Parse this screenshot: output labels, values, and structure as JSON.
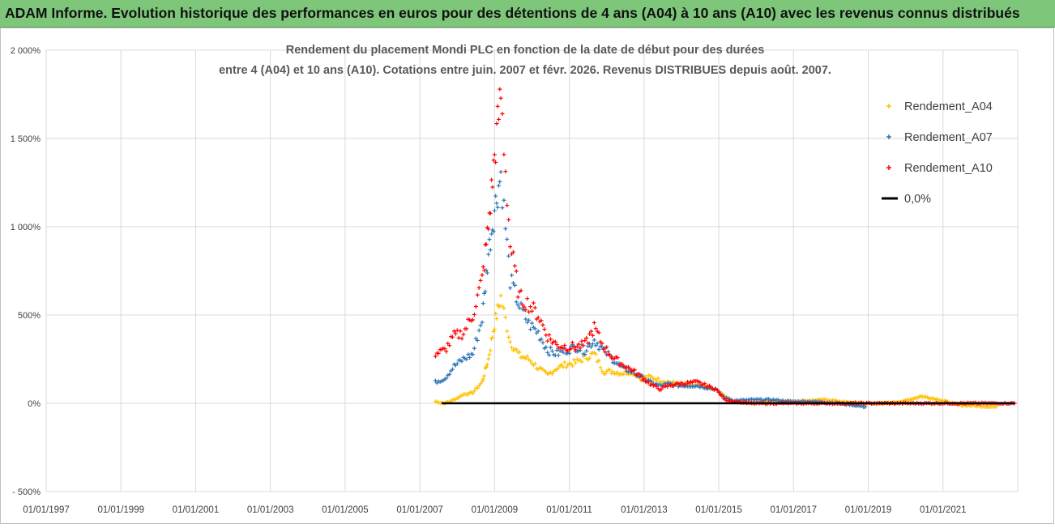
{
  "banner": {
    "title": "ADAM Informe. Evolution historique des performances en euros pour des détentions de 4 ans (A04) à 10 ans (A10) avec les revenus connus distribués"
  },
  "colors": {
    "banner_bg": "#7dc67a",
    "A04": "#ffc000",
    "A07": "#2e75b6",
    "A10": "#ff0000",
    "zero_line": "#000000",
    "grid": "#d9d9d9"
  },
  "chart_data": {
    "type": "scatter",
    "title_line1": "Rendement du placement Mondi PLC en fonction de la date de début pour des durées",
    "title_line2": "entre 4 (A04) et 10 ans (A10).  Cotations entre juin. 2007 et févr. 2026. Revenus DISTRIBUES depuis août. 2007.",
    "xlabel": "",
    "ylabel": "",
    "x_range": [
      "01/01/1997",
      "31/12/2022"
    ],
    "ylim": [
      -500,
      2000
    ],
    "y_ticks": [
      -500,
      0,
      500,
      1000,
      1500,
      2000
    ],
    "y_tick_labels": [
      "- 500%",
      "0%",
      "500%",
      "1 000%",
      "1 500%",
      "2 000%"
    ],
    "x_tick_labels": [
      "01/01/1997",
      "01/01/1999",
      "01/01/2001",
      "01/01/2003",
      "01/01/2005",
      "01/01/2007",
      "01/01/2009",
      "01/01/2011",
      "01/01/2013",
      "01/01/2015",
      "01/01/2017",
      "01/01/2019",
      "01/01/2021"
    ],
    "grid": true,
    "legend_position": "top-right",
    "series": [
      {
        "name": "Rendement_A04",
        "marker": "plus",
        "points": [
          [
            "2007-06",
            10
          ],
          [
            "2007-09",
            0
          ],
          [
            "2007-12",
            20
          ],
          [
            "2008-03",
            50
          ],
          [
            "2008-06",
            60
          ],
          [
            "2008-09",
            120
          ],
          [
            "2008-11",
            250
          ],
          [
            "2009-01",
            450
          ],
          [
            "2009-03",
            600
          ],
          [
            "2009-06",
            350
          ],
          [
            "2009-09",
            270
          ],
          [
            "2009-12",
            250
          ],
          [
            "2010-03",
            200
          ],
          [
            "2010-06",
            160
          ],
          [
            "2010-09",
            200
          ],
          [
            "2010-12",
            220
          ],
          [
            "2011-03",
            230
          ],
          [
            "2011-06",
            260
          ],
          [
            "2011-09",
            280
          ],
          [
            "2011-12",
            180
          ],
          [
            "2012-03",
            180
          ],
          [
            "2012-06",
            170
          ],
          [
            "2012-09",
            180
          ],
          [
            "2012-12",
            140
          ],
          [
            "2013-03",
            150
          ],
          [
            "2013-06",
            130
          ],
          [
            "2013-09",
            120
          ],
          [
            "2013-12",
            110
          ],
          [
            "2014-06",
            100
          ],
          [
            "2014-12",
            80
          ],
          [
            "2015-03",
            40
          ],
          [
            "2015-06",
            10
          ],
          [
            "2015-12",
            0
          ],
          [
            "2016-06",
            15
          ],
          [
            "2016-12",
            10
          ],
          [
            "2017-06",
            15
          ],
          [
            "2017-12",
            20
          ],
          [
            "2018-06",
            5
          ],
          [
            "2018-12",
            0
          ],
          [
            "2019-06",
            0
          ],
          [
            "2019-12",
            10
          ],
          [
            "2020-06",
            40
          ],
          [
            "2020-12",
            20
          ],
          [
            "2021-06",
            -10
          ],
          [
            "2022-06",
            -20
          ]
        ]
      },
      {
        "name": "Rendement_A07",
        "marker": "plus",
        "points": [
          [
            "2007-06",
            120
          ],
          [
            "2007-09",
            140
          ],
          [
            "2007-12",
            210
          ],
          [
            "2008-03",
            250
          ],
          [
            "2008-06",
            280
          ],
          [
            "2008-09",
            480
          ],
          [
            "2008-11",
            850
          ],
          [
            "2009-01",
            1100
          ],
          [
            "2009-03",
            1300
          ],
          [
            "2009-06",
            700
          ],
          [
            "2009-09",
            550
          ],
          [
            "2009-12",
            450
          ],
          [
            "2010-03",
            400
          ],
          [
            "2010-06",
            300
          ],
          [
            "2010-09",
            280
          ],
          [
            "2010-12",
            300
          ],
          [
            "2011-03",
            320
          ],
          [
            "2011-06",
            300
          ],
          [
            "2011-09",
            360
          ],
          [
            "2011-12",
            300
          ],
          [
            "2012-03",
            250
          ],
          [
            "2012-06",
            200
          ],
          [
            "2012-09",
            180
          ],
          [
            "2012-12",
            150
          ],
          [
            "2013-03",
            120
          ],
          [
            "2013-06",
            100
          ],
          [
            "2013-09",
            110
          ],
          [
            "2013-12",
            100
          ],
          [
            "2014-06",
            100
          ],
          [
            "2014-12",
            80
          ],
          [
            "2015-03",
            30
          ],
          [
            "2015-06",
            15
          ],
          [
            "2015-12",
            20
          ],
          [
            "2016-06",
            20
          ],
          [
            "2016-12",
            10
          ],
          [
            "2017-06",
            10
          ],
          [
            "2017-12",
            5
          ],
          [
            "2018-06",
            -5
          ],
          [
            "2018-12",
            -20
          ]
        ]
      },
      {
        "name": "Rendement_A10",
        "marker": "plus",
        "points": [
          [
            "2007-06",
            280
          ],
          [
            "2007-09",
            300
          ],
          [
            "2007-12",
            380
          ],
          [
            "2008-03",
            400
          ],
          [
            "2008-06",
            500
          ],
          [
            "2008-09",
            700
          ],
          [
            "2008-11",
            1000
          ],
          [
            "2009-01",
            1400
          ],
          [
            "2009-03",
            1750
          ],
          [
            "2009-06",
            900
          ],
          [
            "2009-09",
            600
          ],
          [
            "2009-12",
            560
          ],
          [
            "2010-03",
            500
          ],
          [
            "2010-06",
            380
          ],
          [
            "2010-09",
            330
          ],
          [
            "2010-12",
            320
          ],
          [
            "2011-03",
            320
          ],
          [
            "2011-06",
            330
          ],
          [
            "2011-09",
            430
          ],
          [
            "2011-12",
            320
          ],
          [
            "2012-03",
            260
          ],
          [
            "2012-06",
            220
          ],
          [
            "2012-09",
            190
          ],
          [
            "2012-12",
            150
          ],
          [
            "2013-03",
            110
          ],
          [
            "2013-06",
            80
          ],
          [
            "2013-09",
            100
          ],
          [
            "2013-12",
            110
          ],
          [
            "2014-06",
            120
          ],
          [
            "2014-12",
            80
          ],
          [
            "2015-03",
            20
          ],
          [
            "2015-06",
            10
          ],
          [
            "2015-12",
            0
          ],
          [
            "2016-06",
            0
          ],
          [
            "2017-01",
            0
          ],
          [
            "2018-01",
            0
          ],
          [
            "2019-01",
            0
          ],
          [
            "2020-01",
            0
          ],
          [
            "2021-01",
            0
          ],
          [
            "2022-01",
            0
          ],
          [
            "2022-12",
            0
          ]
        ]
      },
      {
        "name": "0,0%",
        "marker": "line",
        "points": [
          [
            "2007-08",
            0
          ],
          [
            "2022-12",
            0
          ]
        ]
      }
    ]
  }
}
